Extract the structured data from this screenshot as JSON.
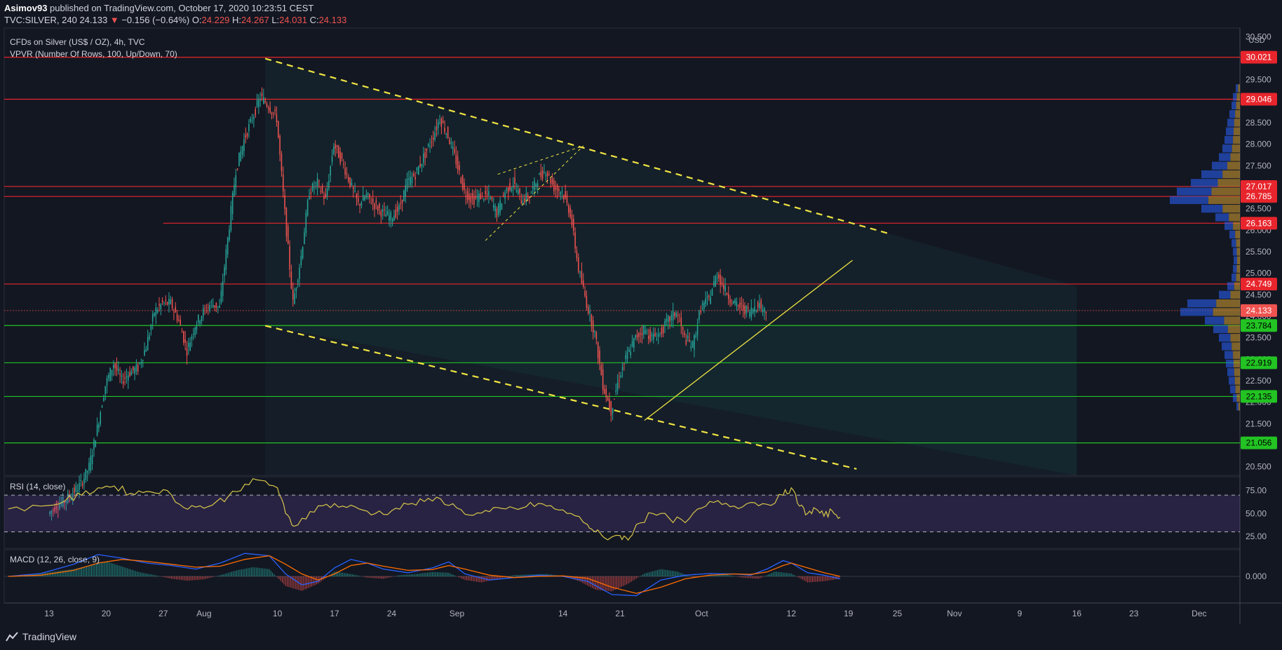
{
  "header": {
    "author": "Asimov93",
    "published_text": "published on TradingView.com, October 17, 2020 10:23:51 CEST",
    "symbol": "TVC:SILVER, 240",
    "last": "24.133",
    "change": "−0.156 (−0.64%)",
    "o_label": "O:",
    "o_val": "24.229",
    "h_label": "H:",
    "h_val": "24.267",
    "l_label": "L:",
    "l_val": "24.031",
    "c_label": "C:",
    "c_val": "24.133"
  },
  "legend": {
    "title": "CFDs on Silver (US$ / OZ), 4h, TVC",
    "vpvr": "VPVR (Number Of Rows, 100, Up/Down, 70)",
    "rsi": "RSI (14, close)",
    "macd": "MACD (12, 26, close, 9)"
  },
  "footer": {
    "brand": "TradingView"
  },
  "colors": {
    "bg": "#131722",
    "up": "#26a69a",
    "down": "#ef5350",
    "resistance": "#e8252c",
    "support": "#22c322",
    "trend": "#f0e442",
    "rsi": "#d6c54a",
    "macd": "#2962ff",
    "signal": "#ff6d00"
  },
  "chart_data": {
    "type": "candlestick",
    "symbol": "TVC:SILVER",
    "timeframe": "4h",
    "currency_label": "USD",
    "price_axis": {
      "ticks": [
        20.5,
        21.0,
        21.5,
        22.0,
        22.5,
        23.0,
        23.5,
        24.0,
        24.5,
        25.0,
        25.5,
        26.0,
        26.5,
        27.0,
        27.5,
        28.0,
        28.5,
        29.0,
        29.5,
        30.0,
        30.5
      ],
      "tick_labels": [
        "20.500",
        "21.000",
        "21.500",
        "22.000",
        "22.500",
        "23.000",
        "23.500",
        "24.000",
        "24.500",
        "25.000",
        "25.500",
        "26.000",
        "26.500",
        "27.000",
        "27.500",
        "28.000",
        "28.500",
        "29.000",
        "29.500",
        "30.000",
        "30.500"
      ],
      "range": [
        20.3,
        30.7
      ]
    },
    "time_axis": {
      "labels": [
        "13",
        "20",
        "27",
        "Aug",
        "10",
        "17",
        "24",
        "Sep",
        "14",
        "21",
        "Oct",
        "12",
        "19",
        "25",
        "Nov",
        "9",
        "16",
        "23",
        "Dec"
      ],
      "day_index": [
        -19,
        -12,
        -5,
        0,
        9,
        16,
        23,
        31,
        44,
        51,
        61,
        72,
        79,
        85,
        92,
        100,
        107,
        114,
        122
      ],
      "day_index_note": "days since Aug 1, 2020",
      "range": [
        -24.5,
        127
      ]
    },
    "resistance_levels": [
      {
        "price": 30.021,
        "label": "30.021"
      },
      {
        "price": 29.046,
        "label": "29.046"
      },
      {
        "price": 27.017,
        "label": "27.017"
      },
      {
        "price": 26.785,
        "label": "26.785"
      },
      {
        "price": 26.163,
        "label": "26.163"
      },
      {
        "price": 24.749,
        "label": "24.749"
      }
    ],
    "support_levels": [
      {
        "price": 23.784,
        "label": "23.784"
      },
      {
        "price": 22.919,
        "label": "22.919"
      },
      {
        "price": 22.135,
        "label": "22.135"
      },
      {
        "price": 21.056,
        "label": "21.056"
      }
    ],
    "last_price": {
      "price": 24.133,
      "label": "24.133"
    },
    "trendlines": [
      {
        "style": "dashed",
        "points": [
          [
            7.5,
            29.99
          ],
          [
            84,
            25.92
          ]
        ]
      },
      {
        "style": "dashed",
        "points": [
          [
            7.5,
            23.78
          ],
          [
            80,
            20.45
          ]
        ]
      },
      {
        "style": "dashed-thin",
        "points": [
          [
            34.5,
            25.76
          ],
          [
            46.5,
            27.96
          ]
        ]
      },
      {
        "style": "dashed-thin",
        "points": [
          [
            36,
            27.3
          ],
          [
            46.5,
            27.96
          ]
        ]
      },
      {
        "style": "solid",
        "points": [
          [
            54,
            21.58
          ],
          [
            79.5,
            25.3
          ]
        ]
      }
    ],
    "price_path": [
      [
        -19,
        19.4
      ],
      [
        -18,
        19.6
      ],
      [
        -17,
        19.7
      ],
      [
        -16,
        19.9
      ],
      [
        -15,
        20.1
      ],
      [
        -14,
        20.5
      ],
      [
        -13,
        21.4
      ],
      [
        -12,
        22.4
      ],
      [
        -11,
        22.9
      ],
      [
        -10,
        22.5
      ],
      [
        -9,
        22.7
      ],
      [
        -8,
        22.8
      ],
      [
        -7,
        23.3
      ],
      [
        -6,
        24.1
      ],
      [
        -5,
        24.3
      ],
      [
        -4,
        24.3
      ],
      [
        -3,
        23.9
      ],
      [
        -2,
        23.2
      ],
      [
        -1,
        23.8
      ],
      [
        0,
        24.1
      ],
      [
        1,
        24.3
      ],
      [
        2,
        24.2
      ],
      [
        3,
        25.8
      ],
      [
        4,
        27.4
      ],
      [
        5,
        28.1
      ],
      [
        6,
        28.6
      ],
      [
        7,
        29.1
      ],
      [
        8,
        28.9
      ],
      [
        9,
        28.6
      ],
      [
        10,
        26.4
      ],
      [
        11,
        24.3
      ],
      [
        12,
        25.4
      ],
      [
        13,
        26.9
      ],
      [
        14,
        27.1
      ],
      [
        15,
        26.7
      ],
      [
        16,
        28.0
      ],
      [
        17,
        27.6
      ],
      [
        18,
        27.1
      ],
      [
        19,
        26.6
      ],
      [
        20,
        26.8
      ],
      [
        21,
        26.6
      ],
      [
        22,
        26.4
      ],
      [
        23,
        26.3
      ],
      [
        24,
        26.5
      ],
      [
        25,
        27.1
      ],
      [
        26,
        27.3
      ],
      [
        27,
        27.7
      ],
      [
        28,
        28.1
      ],
      [
        29,
        28.6
      ],
      [
        30,
        28.2
      ],
      [
        31,
        27.6
      ],
      [
        32,
        26.9
      ],
      [
        33,
        26.7
      ],
      [
        34,
        26.8
      ],
      [
        35,
        26.8
      ],
      [
        36,
        26.4
      ],
      [
        37,
        26.9
      ],
      [
        38,
        27.1
      ],
      [
        39,
        26.7
      ],
      [
        40,
        26.8
      ],
      [
        41,
        27.2
      ],
      [
        42,
        27.4
      ],
      [
        43,
        27.0
      ],
      [
        44,
        26.9
      ],
      [
        45,
        26.4
      ],
      [
        46,
        25.1
      ],
      [
        47,
        24.3
      ],
      [
        48,
        23.6
      ],
      [
        49,
        22.4
      ],
      [
        50,
        21.8
      ],
      [
        51,
        22.6
      ],
      [
        52,
        23.1
      ],
      [
        53,
        23.5
      ],
      [
        54,
        23.7
      ],
      [
        55,
        23.5
      ],
      [
        56,
        23.6
      ],
      [
        57,
        23.9
      ],
      [
        58,
        24.1
      ],
      [
        59,
        23.5
      ],
      [
        60,
        23.3
      ],
      [
        61,
        24.2
      ],
      [
        62,
        24.4
      ],
      [
        63,
        25.0
      ],
      [
        64,
        24.6
      ],
      [
        65,
        24.3
      ],
      [
        66,
        24.2
      ],
      [
        67,
        24.1
      ],
      [
        68,
        24.3
      ],
      [
        69,
        24.1
      ]
    ],
    "rsi": {
      "levels": [
        70,
        30
      ],
      "ticks": [
        25,
        50,
        75
      ],
      "tick_labels": [
        "25.00",
        "50.00",
        "75.00"
      ],
      "range": [
        12,
        90
      ],
      "path": [
        [
          -24,
          55
        ],
        [
          -20,
          58
        ],
        [
          -17,
          64
        ],
        [
          -15,
          70
        ],
        [
          -13,
          78
        ],
        [
          -11,
          80
        ],
        [
          -9,
          72
        ],
        [
          -7,
          74
        ],
        [
          -5,
          76
        ],
        [
          -3,
          60
        ],
        [
          -1,
          57
        ],
        [
          1,
          59
        ],
        [
          3,
          69
        ],
        [
          5,
          82
        ],
        [
          7,
          86
        ],
        [
          9,
          78
        ],
        [
          10,
          50
        ],
        [
          11,
          36
        ],
        [
          13,
          52
        ],
        [
          15,
          60
        ],
        [
          17,
          58
        ],
        [
          19,
          55
        ],
        [
          21,
          50
        ],
        [
          23,
          53
        ],
        [
          25,
          60
        ],
        [
          27,
          63
        ],
        [
          29,
          66
        ],
        [
          31,
          56
        ],
        [
          33,
          48
        ],
        [
          35,
          52
        ],
        [
          37,
          55
        ],
        [
          39,
          56
        ],
        [
          41,
          61
        ],
        [
          43,
          55
        ],
        [
          45,
          50
        ],
        [
          47,
          38
        ],
        [
          48,
          30
        ],
        [
          49,
          24
        ],
        [
          51,
          26
        ],
        [
          52,
          21
        ],
        [
          53,
          38
        ],
        [
          55,
          50
        ],
        [
          57,
          45
        ],
        [
          59,
          40
        ],
        [
          61,
          56
        ],
        [
          63,
          64
        ],
        [
          65,
          58
        ],
        [
          67,
          62
        ],
        [
          69,
          60
        ],
        [
          71,
          70
        ],
        [
          72,
          78
        ],
        [
          73,
          58
        ],
        [
          74,
          50
        ],
        [
          75,
          55
        ],
        [
          76,
          47
        ],
        [
          77,
          53
        ],
        [
          78,
          46
        ]
      ]
    },
    "macd": {
      "ticks": [
        0
      ],
      "tick_labels": [
        "0.000"
      ],
      "range": [
        -1.1,
        1.1
      ],
      "histogram": [
        [
          -22,
          0.05
        ],
        [
          -20,
          0.12
        ],
        [
          -18,
          0.22
        ],
        [
          -16,
          0.3
        ],
        [
          -14,
          0.45
        ],
        [
          -12,
          0.62
        ],
        [
          -10,
          0.4
        ],
        [
          -8,
          0.18
        ],
        [
          -6,
          0.05
        ],
        [
          -4,
          -0.1
        ],
        [
          -2,
          -0.18
        ],
        [
          0,
          -0.12
        ],
        [
          2,
          0.05
        ],
        [
          4,
          0.25
        ],
        [
          6,
          0.38
        ],
        [
          8,
          0.3
        ],
        [
          10,
          -0.4
        ],
        [
          12,
          -0.6
        ],
        [
          14,
          -0.3
        ],
        [
          16,
          0.2
        ],
        [
          18,
          0.1
        ],
        [
          20,
          -0.05
        ],
        [
          22,
          -0.1
        ],
        [
          24,
          0.05
        ],
        [
          26,
          0.1
        ],
        [
          28,
          0.18
        ],
        [
          30,
          0.15
        ],
        [
          32,
          -0.15
        ],
        [
          34,
          -0.25
        ],
        [
          36,
          -0.1
        ],
        [
          38,
          0.05
        ],
        [
          40,
          0.08
        ],
        [
          42,
          0.1
        ],
        [
          44,
          0.02
        ],
        [
          46,
          -0.2
        ],
        [
          48,
          -0.55
        ],
        [
          50,
          -0.62
        ],
        [
          52,
          -0.3
        ],
        [
          54,
          0.12
        ],
        [
          56,
          0.3
        ],
        [
          58,
          0.2
        ],
        [
          60,
          -0.05
        ],
        [
          62,
          0.05
        ],
        [
          64,
          0.08
        ],
        [
          66,
          -0.05
        ],
        [
          68,
          -0.1
        ],
        [
          70,
          0.2
        ],
        [
          72,
          0.12
        ],
        [
          74,
          -0.25
        ],
        [
          76,
          -0.2
        ],
        [
          78,
          -0.1
        ]
      ],
      "macd_line": [
        [
          -24,
          0.0
        ],
        [
          -20,
          0.12
        ],
        [
          -16,
          0.5
        ],
        [
          -13,
          0.9
        ],
        [
          -10,
          0.75
        ],
        [
          -7,
          0.55
        ],
        [
          -4,
          0.45
        ],
        [
          -1,
          0.3
        ],
        [
          2,
          0.55
        ],
        [
          5,
          0.95
        ],
        [
          8,
          0.85
        ],
        [
          10,
          0.1
        ],
        [
          12,
          -0.35
        ],
        [
          14,
          -0.2
        ],
        [
          16,
          0.35
        ],
        [
          18,
          0.7
        ],
        [
          20,
          0.55
        ],
        [
          22,
          0.3
        ],
        [
          25,
          0.15
        ],
        [
          28,
          0.35
        ],
        [
          30,
          0.6
        ],
        [
          32,
          0.1
        ],
        [
          35,
          -0.15
        ],
        [
          38,
          -0.05
        ],
        [
          41,
          0.05
        ],
        [
          44,
          0.0
        ],
        [
          47,
          -0.2
        ],
        [
          50,
          -0.75
        ],
        [
          53,
          -0.8
        ],
        [
          56,
          -0.15
        ],
        [
          59,
          0.05
        ],
        [
          62,
          0.12
        ],
        [
          65,
          0.1
        ],
        [
          67,
          0.05
        ],
        [
          69,
          0.3
        ],
        [
          71,
          0.65
        ],
        [
          72,
          0.55
        ],
        [
          74,
          0.15
        ],
        [
          76,
          0.05
        ],
        [
          78,
          -0.1
        ]
      ],
      "signal_line": [
        [
          -24,
          0.0
        ],
        [
          -20,
          0.05
        ],
        [
          -16,
          0.25
        ],
        [
          -13,
          0.55
        ],
        [
          -10,
          0.7
        ],
        [
          -7,
          0.62
        ],
        [
          -4,
          0.5
        ],
        [
          -1,
          0.38
        ],
        [
          2,
          0.42
        ],
        [
          5,
          0.7
        ],
        [
          8,
          0.85
        ],
        [
          10,
          0.5
        ],
        [
          12,
          0.1
        ],
        [
          14,
          -0.15
        ],
        [
          16,
          0.1
        ],
        [
          18,
          0.45
        ],
        [
          20,
          0.55
        ],
        [
          22,
          0.42
        ],
        [
          25,
          0.25
        ],
        [
          28,
          0.28
        ],
        [
          30,
          0.45
        ],
        [
          32,
          0.3
        ],
        [
          35,
          0.05
        ],
        [
          38,
          -0.05
        ],
        [
          41,
          0.0
        ],
        [
          44,
          0.02
        ],
        [
          47,
          -0.08
        ],
        [
          50,
          -0.45
        ],
        [
          53,
          -0.7
        ],
        [
          56,
          -0.45
        ],
        [
          59,
          -0.1
        ],
        [
          62,
          0.05
        ],
        [
          65,
          0.1
        ],
        [
          67,
          0.08
        ],
        [
          69,
          0.18
        ],
        [
          71,
          0.45
        ],
        [
          72,
          0.55
        ],
        [
          74,
          0.35
        ],
        [
          76,
          0.15
        ],
        [
          78,
          0.0
        ]
      ]
    },
    "vpvr_profile": [
      [
        21.9,
        0.05
      ],
      [
        22.1,
        0.1
      ],
      [
        22.3,
        0.14
      ],
      [
        22.5,
        0.16
      ],
      [
        22.7,
        0.18
      ],
      [
        22.9,
        0.2
      ],
      [
        23.1,
        0.22
      ],
      [
        23.3,
        0.26
      ],
      [
        23.5,
        0.3
      ],
      [
        23.7,
        0.38
      ],
      [
        23.9,
        0.5
      ],
      [
        24.1,
        0.85
      ],
      [
        24.3,
        0.75
      ],
      [
        24.5,
        0.3
      ],
      [
        24.7,
        0.18
      ],
      [
        24.9,
        0.12
      ],
      [
        25.1,
        0.1
      ],
      [
        25.3,
        0.09
      ],
      [
        25.5,
        0.1
      ],
      [
        25.7,
        0.12
      ],
      [
        25.9,
        0.15
      ],
      [
        26.1,
        0.22
      ],
      [
        26.3,
        0.35
      ],
      [
        26.5,
        0.55
      ],
      [
        26.7,
        1.0
      ],
      [
        26.9,
        0.9
      ],
      [
        27.1,
        0.7
      ],
      [
        27.3,
        0.55
      ],
      [
        27.5,
        0.4
      ],
      [
        27.7,
        0.3
      ],
      [
        27.9,
        0.25
      ],
      [
        28.1,
        0.22
      ],
      [
        28.3,
        0.2
      ],
      [
        28.5,
        0.18
      ],
      [
        28.7,
        0.15
      ],
      [
        28.9,
        0.12
      ],
      [
        29.1,
        0.1
      ],
      [
        29.3,
        0.06
      ]
    ]
  }
}
